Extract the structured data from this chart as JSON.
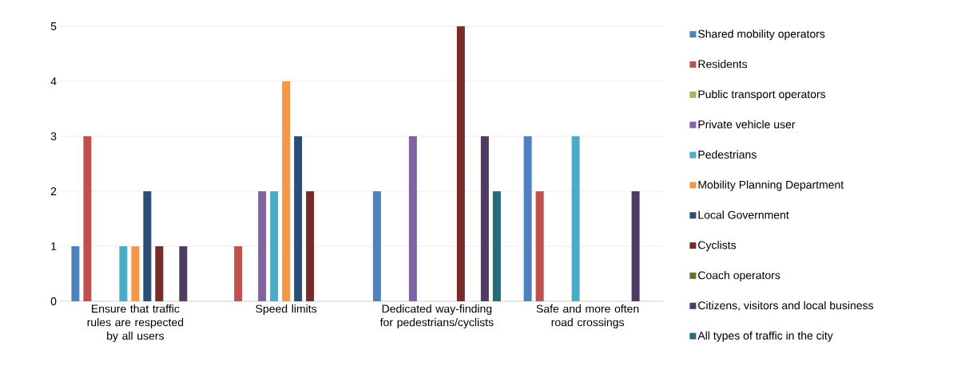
{
  "chart_data": {
    "type": "bar",
    "categories": [
      "Ensure that traffic rules are respected by all users",
      "Speed limits",
      "Dedicated way-finding for pedestrians/cyclists",
      "Safe and more often road crossings"
    ],
    "series": [
      {
        "name": "Shared mobility operators",
        "color": "#4f81bd",
        "values": [
          1,
          0,
          2,
          3
        ]
      },
      {
        "name": "Residents",
        "color": "#c0504d",
        "values": [
          3,
          1,
          0,
          2
        ]
      },
      {
        "name": "Public transport operators",
        "color": "#9bbb59",
        "values": [
          0,
          0,
          0,
          0
        ]
      },
      {
        "name": "Private vehicle user",
        "color": "#8064a2",
        "values": [
          0,
          2,
          3,
          0
        ]
      },
      {
        "name": "Pedestrians",
        "color": "#4bacc6",
        "values": [
          1,
          2,
          0,
          3
        ]
      },
      {
        "name": "Mobility Planning Department",
        "color": "#f79646",
        "values": [
          1,
          4,
          0,
          0
        ]
      },
      {
        "name": "Local Government",
        "color": "#2c4d75",
        "values": [
          2,
          3,
          0,
          0
        ]
      },
      {
        "name": "Cyclists",
        "color": "#772c2a",
        "values": [
          1,
          2,
          5,
          0
        ]
      },
      {
        "name": "Coach operators",
        "color": "#5f7530",
        "values": [
          0,
          0,
          0,
          0
        ]
      },
      {
        "name": "Citizens, visitors and local business",
        "color": "#4d3b62",
        "values": [
          1,
          0,
          3,
          2
        ]
      },
      {
        "name": "All types of traffic in the city",
        "color": "#276a7c",
        "values": [
          0,
          0,
          2,
          0
        ]
      }
    ],
    "ylim": [
      0,
      5
    ],
    "yticks": [
      0,
      1,
      2,
      3,
      4,
      5
    ],
    "grid": "y",
    "legend": "right"
  }
}
